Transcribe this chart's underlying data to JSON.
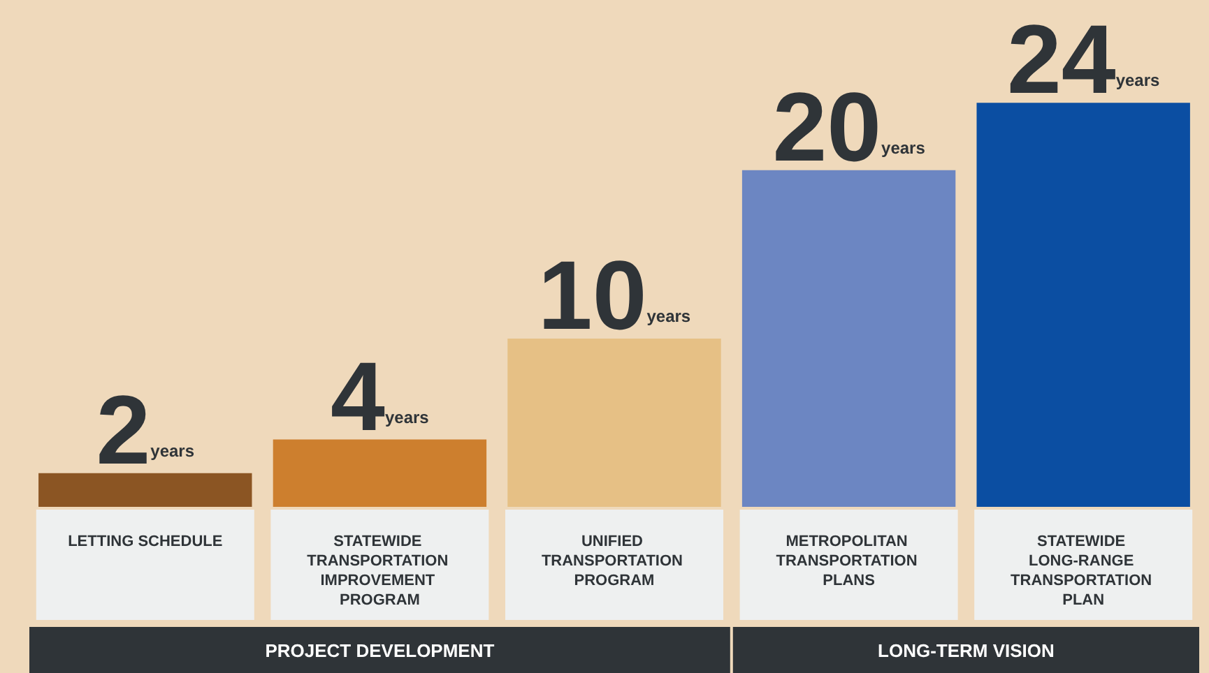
{
  "chart_data": {
    "type": "bar",
    "categories": [
      "LETTING SCHEDULE",
      "STATEWIDE TRANSPORTATION IMPROVEMENT PROGRAM",
      "UNIFIED TRANSPORTATION PROGRAM",
      "METROPOLITAN TRANSPORTATION PLANS",
      "STATEWIDE LONG-RANGE TRANSPORTATION PLAN"
    ],
    "values": [
      2,
      4,
      10,
      20,
      24
    ],
    "colors": [
      "#8b5523",
      "#cd7f2e",
      "#e6c085",
      "#6c86c2",
      "#0b4ea2"
    ],
    "value_labels": [
      "2years",
      "4years",
      "10years",
      "20years",
      "24years"
    ],
    "annotations": [
      "PROJECT DEVELOPMENT",
      "LONG-TERM VISION"
    ],
    "grid": false
  }
}
